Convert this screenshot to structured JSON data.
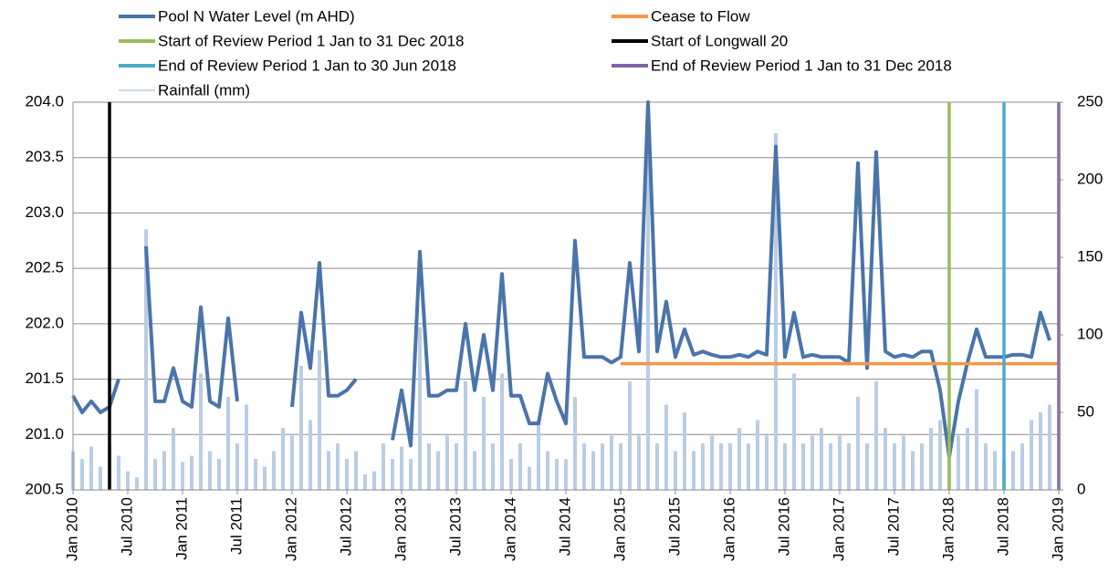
{
  "chart_data": {
    "type": "line",
    "xlim": [
      "2010-01",
      "2019-01"
    ],
    "xticks": [
      {
        "value": "2010-01",
        "label": "Jan 2010"
      },
      {
        "value": "2010-07",
        "label": "Jul 2010"
      },
      {
        "value": "2011-01",
        "label": "Jan 2011"
      },
      {
        "value": "2011-07",
        "label": "Jul 2011"
      },
      {
        "value": "2012-01",
        "label": "Jan 2012"
      },
      {
        "value": "2012-07",
        "label": "Jul 2012"
      },
      {
        "value": "2013-01",
        "label": "Jan 2013"
      },
      {
        "value": "2013-07",
        "label": "Jul 2013"
      },
      {
        "value": "2014-01",
        "label": "Jan 2014"
      },
      {
        "value": "2014-07",
        "label": "Jul 2014"
      },
      {
        "value": "2015-01",
        "label": "Jan 2015"
      },
      {
        "value": "2015-07",
        "label": "Jul 2015"
      },
      {
        "value": "2016-01",
        "label": "Jan 2016"
      },
      {
        "value": "2016-07",
        "label": "Jul 2016"
      },
      {
        "value": "2017-01",
        "label": "Jan 2017"
      },
      {
        "value": "2017-07",
        "label": "Jul 2017"
      },
      {
        "value": "2018-01",
        "label": "Jan 2018"
      },
      {
        "value": "2018-07",
        "label": "Jul 2018"
      },
      {
        "value": "2019-01",
        "label": "Jan 2019"
      }
    ],
    "ylim": [
      200.5,
      204
    ],
    "yticks": [
      {
        "value": 200.5,
        "label": "200.5"
      },
      {
        "value": 201,
        "label": "201.0"
      },
      {
        "value": 201.5,
        "label": "201.5"
      },
      {
        "value": 202,
        "label": "202.0"
      },
      {
        "value": 202.5,
        "label": "202.5"
      },
      {
        "value": 203,
        "label": "203.0"
      },
      {
        "value": 203.5,
        "label": "203.5"
      },
      {
        "value": 204,
        "label": "204.0"
      }
    ],
    "y2lim": [
      0,
      250
    ],
    "y2ticks": [
      0,
      50,
      100,
      150,
      200,
      250
    ],
    "grid": true,
    "series": [
      {
        "name": "Pool N Water Level (m AHD)",
        "color": "#4a74aa",
        "type": "line",
        "x": [
          "2010-01",
          "2010-02",
          "2010-03",
          "2010-04",
          "2010-05",
          "2010-06",
          "2010-07",
          "2010-08",
          "2010-09",
          "2010-10",
          "2010-11",
          "2010-12",
          "2011-01",
          "2011-02",
          "2011-03",
          "2011-04",
          "2011-05",
          "2011-06",
          "2011-07",
          "2011-08",
          "2011-09",
          "2011-10",
          "2011-11",
          "2011-12",
          "2012-01",
          "2012-02",
          "2012-03",
          "2012-04",
          "2012-05",
          "2012-06",
          "2012-07",
          "2012-08",
          "2012-09",
          "2012-10",
          "2012-11",
          "2012-12",
          "2013-01",
          "2013-02",
          "2013-03",
          "2013-04",
          "2013-05",
          "2013-06",
          "2013-07",
          "2013-08",
          "2013-09",
          "2013-10",
          "2013-11",
          "2013-12",
          "2014-01",
          "2014-02",
          "2014-03",
          "2014-04",
          "2014-05",
          "2014-06",
          "2014-07",
          "2014-08",
          "2014-09",
          "2014-10",
          "2014-11",
          "2014-12",
          "2015-01",
          "2015-02",
          "2015-03",
          "2015-04",
          "2015-05",
          "2015-06",
          "2015-07",
          "2015-08",
          "2015-09",
          "2015-10",
          "2015-11",
          "2015-12",
          "2016-01",
          "2016-02",
          "2016-03",
          "2016-04",
          "2016-05",
          "2016-06",
          "2016-07",
          "2016-08",
          "2016-09",
          "2016-10",
          "2016-11",
          "2016-12",
          "2017-01",
          "2017-02",
          "2017-03",
          "2017-04",
          "2017-05",
          "2017-06",
          "2017-07",
          "2017-08",
          "2017-09",
          "2017-10",
          "2017-11",
          "2017-12",
          "2018-01",
          "2018-02",
          "2018-03",
          "2018-04",
          "2018-05",
          "2018-06",
          "2018-07",
          "2018-08",
          "2018-09",
          "2018-10",
          "2018-11",
          "2018-12"
        ],
        "values": [
          201.35,
          201.2,
          201.3,
          201.2,
          201.25,
          201.5,
          null,
          null,
          202.7,
          201.3,
          201.3,
          201.6,
          201.3,
          201.25,
          202.15,
          201.3,
          201.25,
          202.05,
          201.3,
          null,
          null,
          null,
          null,
          null,
          201.25,
          202.1,
          201.6,
          202.55,
          201.35,
          201.35,
          201.4,
          201.5,
          null,
          null,
          null,
          200.95,
          201.4,
          200.9,
          202.65,
          201.35,
          201.35,
          201.4,
          201.4,
          202.0,
          201.4,
          201.9,
          201.4,
          202.45,
          201.35,
          201.35,
          201.1,
          201.1,
          201.55,
          201.3,
          201.1,
          202.75,
          201.7,
          201.7,
          201.7,
          201.65,
          201.7,
          202.55,
          201.75,
          204.0,
          201.75,
          202.2,
          201.7,
          201.95,
          201.72,
          201.75,
          201.72,
          201.7,
          201.7,
          201.72,
          201.7,
          201.75,
          201.72,
          203.6,
          201.7,
          202.1,
          201.7,
          201.72,
          201.7,
          201.7,
          201.7,
          201.65,
          203.45,
          201.6,
          203.55,
          201.75,
          201.7,
          201.72,
          201.7,
          201.75,
          201.75,
          201.4,
          200.8,
          201.3,
          201.65,
          201.95,
          201.7,
          201.7,
          201.7,
          201.72,
          201.72,
          201.7,
          202.1,
          201.85
        ]
      },
      {
        "name": "Cease to Flow",
        "color": "#f79646",
        "type": "line",
        "x": [
          "2015-01",
          "2019-01"
        ],
        "values": [
          201.64,
          201.64
        ]
      },
      {
        "name": "Start of Review Period 1 Jan to 31 Dec 2018",
        "color": "#9bbb59",
        "type": "vline",
        "x": [
          "2018-01"
        ]
      },
      {
        "name": "Start of Longwall 20",
        "color": "#000000",
        "type": "vline",
        "x": [
          "2010-05"
        ]
      },
      {
        "name": "End of Review Period 1 Jan to 30 Jun 2018",
        "color": "#4bacc6",
        "type": "vline",
        "x": [
          "2018-07"
        ]
      },
      {
        "name": "End of Review Period 1 Jan to 31 Dec 2018",
        "color": "#8064a2",
        "type": "vline",
        "x": [
          "2019-01"
        ]
      },
      {
        "name": "Rainfall (mm)",
        "color": "#b9cde5",
        "type": "bar",
        "axis": "y2",
        "x": [
          "2010-01",
          "2010-02",
          "2010-03",
          "2010-04",
          "2010-05",
          "2010-06",
          "2010-07",
          "2010-08",
          "2010-09",
          "2010-10",
          "2010-11",
          "2010-12",
          "2011-01",
          "2011-02",
          "2011-03",
          "2011-04",
          "2011-05",
          "2011-06",
          "2011-07",
          "2011-08",
          "2011-09",
          "2011-10",
          "2011-11",
          "2011-12",
          "2012-01",
          "2012-02",
          "2012-03",
          "2012-04",
          "2012-05",
          "2012-06",
          "2012-07",
          "2012-08",
          "2012-09",
          "2012-10",
          "2012-11",
          "2012-12",
          "2013-01",
          "2013-02",
          "2013-03",
          "2013-04",
          "2013-05",
          "2013-06",
          "2013-07",
          "2013-08",
          "2013-09",
          "2013-10",
          "2013-11",
          "2013-12",
          "2014-01",
          "2014-02",
          "2014-03",
          "2014-04",
          "2014-05",
          "2014-06",
          "2014-07",
          "2014-08",
          "2014-09",
          "2014-10",
          "2014-11",
          "2014-12",
          "2015-01",
          "2015-02",
          "2015-03",
          "2015-04",
          "2015-05",
          "2015-06",
          "2015-07",
          "2015-08",
          "2015-09",
          "2015-10",
          "2015-11",
          "2015-12",
          "2016-01",
          "2016-02",
          "2016-03",
          "2016-04",
          "2016-05",
          "2016-06",
          "2016-07",
          "2016-08",
          "2016-09",
          "2016-10",
          "2016-11",
          "2016-12",
          "2017-01",
          "2017-02",
          "2017-03",
          "2017-04",
          "2017-05",
          "2017-06",
          "2017-07",
          "2017-08",
          "2017-09",
          "2017-10",
          "2017-11",
          "2017-12",
          "2018-01",
          "2018-02",
          "2018-03",
          "2018-04",
          "2018-05",
          "2018-06",
          "2018-07",
          "2018-08",
          "2018-09",
          "2018-10",
          "2018-11",
          "2018-12"
        ],
        "values": [
          25,
          20,
          28,
          15,
          30,
          22,
          12,
          8,
          168,
          20,
          25,
          40,
          18,
          22,
          75,
          25,
          20,
          60,
          30,
          55,
          20,
          15,
          25,
          40,
          35,
          80,
          45,
          90,
          25,
          30,
          20,
          25,
          10,
          12,
          30,
          20,
          28,
          20,
          105,
          30,
          25,
          35,
          30,
          70,
          25,
          60,
          30,
          75,
          20,
          30,
          15,
          45,
          25,
          20,
          20,
          60,
          30,
          25,
          30,
          35,
          30,
          70,
          35,
          250,
          30,
          55,
          25,
          50,
          25,
          30,
          35,
          30,
          30,
          40,
          30,
          45,
          35,
          230,
          30,
          75,
          30,
          35,
          40,
          30,
          35,
          30,
          60,
          30,
          70,
          40,
          30,
          35,
          25,
          30,
          40,
          45,
          25,
          35,
          40,
          65,
          30,
          25,
          20,
          25,
          30,
          45,
          50,
          55
        ]
      }
    ]
  }
}
